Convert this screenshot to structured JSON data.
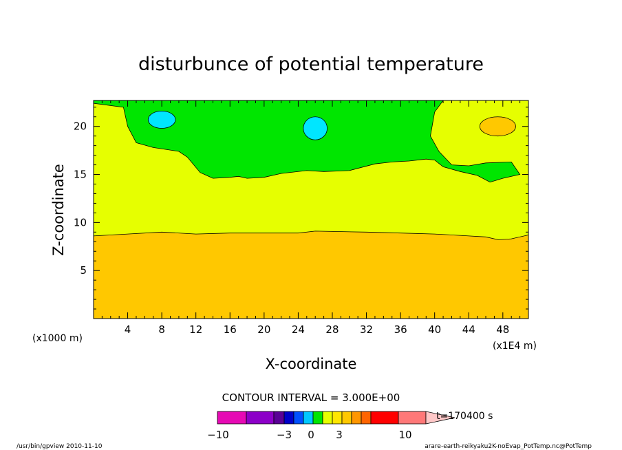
{
  "chart_data": {
    "type": "heatmap",
    "title": "disturbunce of potential temperature",
    "xlabel": "X-coordinate",
    "ylabel": "Z-coordinate",
    "x_unit_left": "(x1000 m)",
    "x_unit_right": "(x1E4 m)",
    "xlim": [
      0,
      51
    ],
    "ylim": [
      0,
      22.7
    ],
    "x_ticks": [
      4,
      8,
      12,
      16,
      20,
      24,
      28,
      32,
      36,
      40,
      44,
      48
    ],
    "y_ticks": [
      5,
      10,
      15,
      20
    ],
    "contour_interval_label": "CONTOUR INTERVAL = 3.000E+00",
    "time_label": "t=170400 s",
    "colorbar": {
      "colors": [
        "#e60ab4",
        "#8c00c8",
        "#5a0096",
        "#0000c8",
        "#0050ff",
        "#00c8ff",
        "#00e600",
        "#e6ff00",
        "#ffe600",
        "#ffc800",
        "#ff9600",
        "#ff6400",
        "#ff0000",
        "#ff7878",
        "#ffc8c8"
      ],
      "tick_labels": [
        "−10",
        "−3",
        "0",
        "3",
        "10"
      ]
    },
    "regions": {
      "below_0": "#ffc800",
      "zero_to_3": "#e6ff00",
      "three_plus": "#00e600",
      "high": "#00e6ff"
    },
    "contours": {
      "lower_boundary": [
        [
          0,
          8.6
        ],
        [
          4,
          8.8
        ],
        [
          8,
          9.0
        ],
        [
          12,
          8.8
        ],
        [
          16,
          8.9
        ],
        [
          20,
          8.9
        ],
        [
          24,
          8.9
        ],
        [
          26,
          9.1
        ],
        [
          32,
          9.0
        ],
        [
          36,
          8.9
        ],
        [
          40,
          8.8
        ],
        [
          44,
          8.6
        ],
        [
          46,
          8.5
        ],
        [
          47.5,
          8.2
        ],
        [
          49,
          8.3
        ],
        [
          51,
          8.7
        ]
      ],
      "green_upper": [
        [
          0,
          22.7
        ],
        [
          0,
          22.4
        ],
        [
          3.5,
          22.0
        ],
        [
          4,
          20.0
        ],
        [
          5,
          18.3
        ],
        [
          7,
          17.8
        ],
        [
          10,
          17.4
        ],
        [
          11,
          16.8
        ],
        [
          12.5,
          15.2
        ],
        [
          14,
          14.6
        ],
        [
          16,
          14.7
        ],
        [
          17,
          14.8
        ],
        [
          18,
          14.6
        ],
        [
          20,
          14.7
        ],
        [
          22,
          15.1
        ],
        [
          25,
          15.4
        ],
        [
          27,
          15.3
        ],
        [
          30,
          15.4
        ],
        [
          33,
          16.1
        ],
        [
          35,
          16.3
        ],
        [
          37,
          16.4
        ],
        [
          39,
          16.6
        ],
        [
          40,
          16.5
        ],
        [
          41,
          15.8
        ],
        [
          43,
          15.3
        ],
        [
          45,
          14.9
        ],
        [
          46.5,
          14.2
        ],
        [
          48,
          14.6
        ],
        [
          50,
          15.0
        ],
        [
          49,
          16.3
        ],
        [
          46,
          16.2
        ],
        [
          44,
          15.9
        ],
        [
          42,
          16.0
        ],
        [
          40.5,
          17.4
        ],
        [
          39.5,
          19.0
        ],
        [
          40,
          21.5
        ],
        [
          41,
          22.7
        ]
      ]
    },
    "ellipses": [
      {
        "cx": 8.0,
        "cy": 20.7,
        "rx": 1.6,
        "ry": 0.9,
        "region": "high"
      },
      {
        "cx": 26.0,
        "cy": 19.8,
        "rx": 1.4,
        "ry": 1.2,
        "region": "high"
      },
      {
        "cx": 47.4,
        "cy": 20.0,
        "rx": 2.1,
        "ry": 1.0,
        "region": "below_0"
      }
    ]
  },
  "footer": {
    "left": "/usr/bin/gpview  2010-11-10",
    "right": "arare-earth-reikyaku2K-noEvap_PotTemp.nc@PotTemp"
  }
}
